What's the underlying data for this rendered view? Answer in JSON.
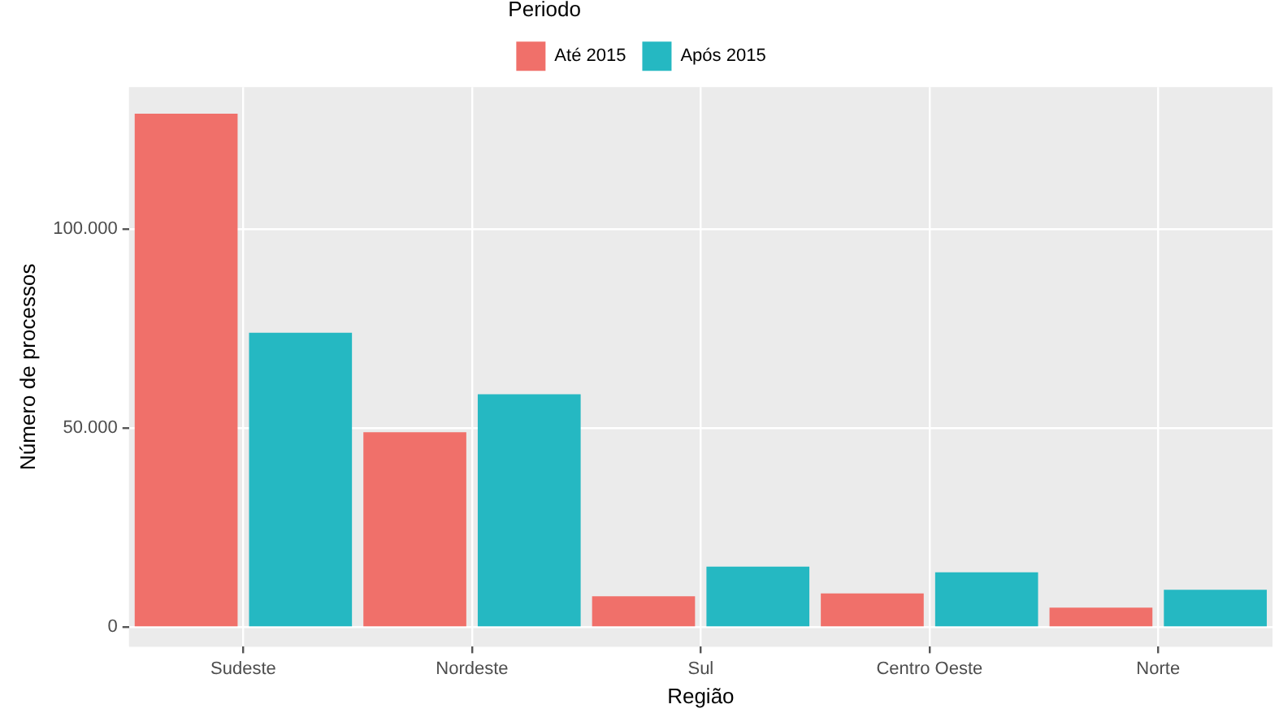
{
  "chart_data": {
    "type": "bar",
    "xlabel": "Região",
    "ylabel": "Número de processos",
    "legend_title": "Periodo",
    "categories": [
      "Sudeste",
      "Nordeste",
      "Sul",
      "Centro Oeste",
      "Norte"
    ],
    "series": [
      {
        "name": "Até 2015",
        "color": "#f0706a",
        "values": [
          129000,
          49000,
          7800,
          8500,
          4900
        ]
      },
      {
        "name": "Após 2015",
        "color": "#25b8c2",
        "values": [
          74000,
          58500,
          15200,
          13800,
          9400
        ]
      }
    ],
    "ylim": [
      -4900,
      135700
    ],
    "yticks": [
      {
        "value": 0,
        "label": "0"
      },
      {
        "value": 50000,
        "label": "50.000"
      },
      {
        "value": 100000,
        "label": "100.000"
      }
    ],
    "grid": true,
    "legend": "top"
  }
}
